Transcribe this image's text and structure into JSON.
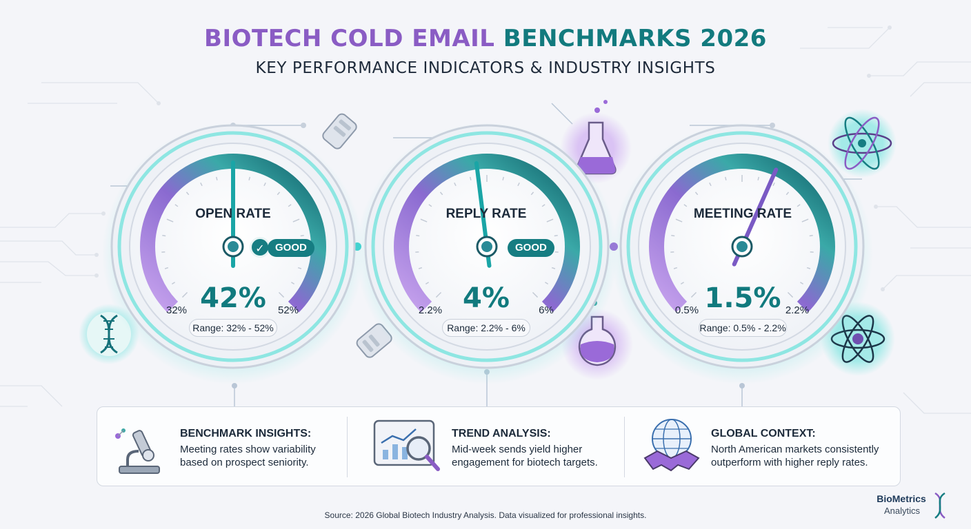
{
  "header": {
    "title_part1": "BIOTECH COLD EMAIL",
    "title_part2": "BENCHMARKS 2026",
    "subtitle": "KEY PERFORMANCE INDICATORS & INDUSTRY INSIGHTS"
  },
  "chart_data": [
    {
      "type": "gauge",
      "title": "OPEN RATE",
      "value": 42,
      "value_label": "42%",
      "min": 32,
      "max": 52,
      "min_label": "32%",
      "max_label": "52%",
      "range_label": "Range: 32% - 52%",
      "status": "GOOD"
    },
    {
      "type": "gauge",
      "title": "REPLY RATE",
      "value": 4,
      "value_label": "4%",
      "min": 2.2,
      "max": 6,
      "min_label": "2.2%",
      "max_label": "6%",
      "range_label": "Range: 2.2% - 6%",
      "status": "GOOD"
    },
    {
      "type": "gauge",
      "title": "MEETING RATE",
      "value": 1.5,
      "value_label": "1.5%",
      "min": 0.5,
      "max": 2.2,
      "min_label": "0.5%",
      "max_label": "2.2%",
      "range_label": "Range: 0.5% - 2.2%"
    }
  ],
  "insights": [
    {
      "title": "BENCHMARK INSIGHTS:",
      "text": "Meeting rates show variability based on prospect seniority.",
      "icon": "microscope-icon"
    },
    {
      "title": "TREND ANALYSIS:",
      "text": "Mid-week sends yield higher engagement for biotech targets.",
      "icon": "trend-analysis-icon"
    },
    {
      "title": "GLOBAL CONTEXT:",
      "text": "North American markets consistently outperform with higher reply rates.",
      "icon": "globe-handshake-icon"
    }
  ],
  "footer": {
    "source": "Source: 2026 Global Biotech Industry Analysis. Data visualized for professional insights.",
    "brand_name": "BioMetrics",
    "brand_sub": "Analytics"
  },
  "colors": {
    "purple": "#8a5cc4",
    "teal": "#127a7e",
    "light_teal": "#3fd0cf"
  },
  "decor_icons": [
    "dna-icon",
    "flask-icon",
    "flask-icon",
    "atom-icon",
    "atom-icon",
    "stopwatch-icon"
  ]
}
